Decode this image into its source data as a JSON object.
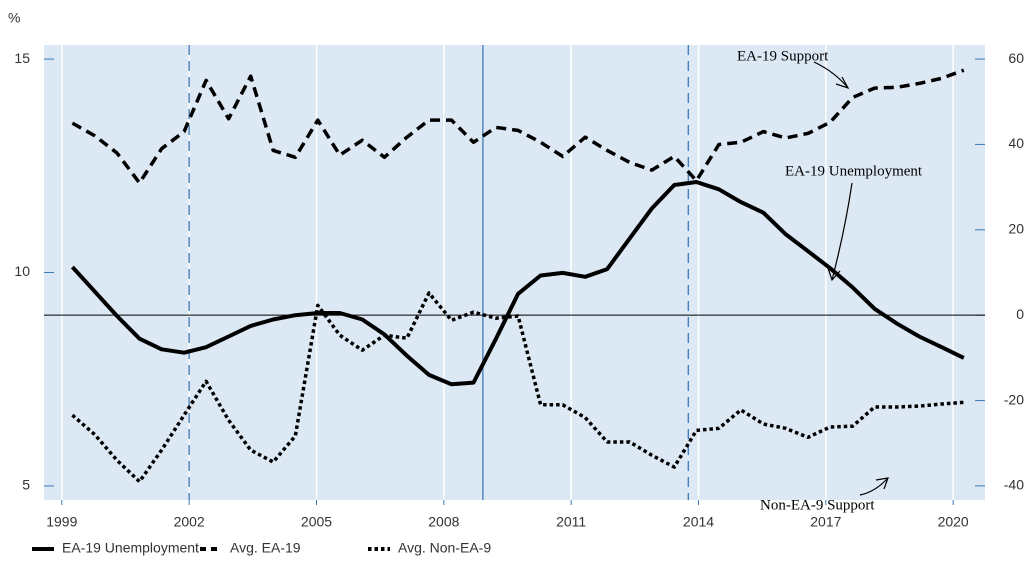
{
  "chart_data": {
    "type": "line",
    "y_label": "%",
    "x": [
      1999.25,
      1999.78,
      2000.3,
      2000.83,
      2001.35,
      2001.88,
      2002.4,
      2002.93,
      2003.45,
      2003.98,
      2004.5,
      2005.03,
      2005.55,
      2006.08,
      2006.6,
      2007.13,
      2007.65,
      2008.18,
      2008.7,
      2009.23,
      2009.75,
      2010.28,
      2010.8,
      2011.33,
      2011.85,
      2012.38,
      2012.9,
      2013.43,
      2013.95,
      2014.48,
      2015.0,
      2015.53,
      2016.05,
      2016.58,
      2017.1,
      2017.63,
      2018.15,
      2018.68,
      2019.2,
      2019.73,
      2020.25
    ],
    "series": [
      {
        "name": "EA-19 Unemployment",
        "color": "#000000",
        "style": "solid",
        "axis": "y",
        "values": [
          10.13,
          9.55,
          8.98,
          8.45,
          8.2,
          8.12,
          8.25,
          8.5,
          8.75,
          8.9,
          9.0,
          9.05,
          9.05,
          8.9,
          8.55,
          8.05,
          7.6,
          7.38,
          7.42,
          8.45,
          9.5,
          9.93,
          9.99,
          9.9,
          10.08,
          10.8,
          11.5,
          12.05,
          12.12,
          11.95,
          11.65,
          11.4,
          10.9,
          10.5,
          10.1,
          9.65,
          9.15,
          8.8,
          8.5,
          8.25,
          8.0
        ]
      },
      {
        "name": "Avg. EA-19",
        "color": "#000000",
        "style": "dashed",
        "axis": "y2",
        "values": [
          45,
          42,
          38,
          31,
          39,
          43,
          55,
          46,
          56,
          38.6,
          37,
          45.7,
          37.5,
          41,
          37,
          41.7,
          45.7,
          45.7,
          40.5,
          44,
          43.3,
          40.5,
          37.2,
          41.7,
          38.6,
          35.8,
          34,
          37.2,
          31.5,
          40,
          40.5,
          43,
          41.5,
          42.6,
          45.2,
          51,
          53.2,
          53.4,
          54.3,
          55.5,
          57.4
        ]
      },
      {
        "name": "Avg. Non-EA-9",
        "color": "#000000",
        "style": "dotted",
        "axis": "y2",
        "values": [
          -23.4,
          -28,
          -34,
          -39,
          -31.6,
          -23.4,
          -15.5,
          -24.6,
          -31.6,
          -34.4,
          -28.3,
          2.3,
          -4.7,
          -8.2,
          -4.7,
          -5.4,
          5.2,
          -1.2,
          0.7,
          -0.7,
          -0.2,
          -21,
          -21,
          -24,
          -29.7,
          -29.7,
          -32.8,
          -35.6,
          -27,
          -26.5,
          -22.2,
          -25.5,
          -26.5,
          -28.6,
          -26.2,
          -26,
          -21.5,
          -21.5,
          -21.3,
          -20.8,
          -20.4
        ]
      }
    ],
    "xlim": [
      1998.58,
      2020.75
    ],
    "xticks": [
      1999,
      2002,
      2005,
      2008,
      2011,
      2014,
      2017,
      2020
    ],
    "ylim": [
      4.67,
      15.33
    ],
    "yticks": [
      5,
      10,
      15
    ],
    "y2lim": [
      -43.3,
      63.3
    ],
    "y2ticks": [
      -40,
      -20,
      0,
      20,
      40,
      60
    ],
    "vertical_grid": true,
    "background": "#dce8f4",
    "reference_lines": [
      {
        "x": 2002,
        "style": "dashed",
        "color": "#3d7ab8"
      },
      {
        "x": 2008.92,
        "style": "solid",
        "color": "#3d7ab8"
      },
      {
        "x": 2013.76,
        "style": "dashed",
        "color": "#3d7ab8"
      }
    ],
    "y2_zero_line": 0,
    "annotations": [
      "EA-19 Support",
      "EA-19 Unemployment",
      "Non-EA-9 Support"
    ],
    "legend": "bottom-left"
  }
}
